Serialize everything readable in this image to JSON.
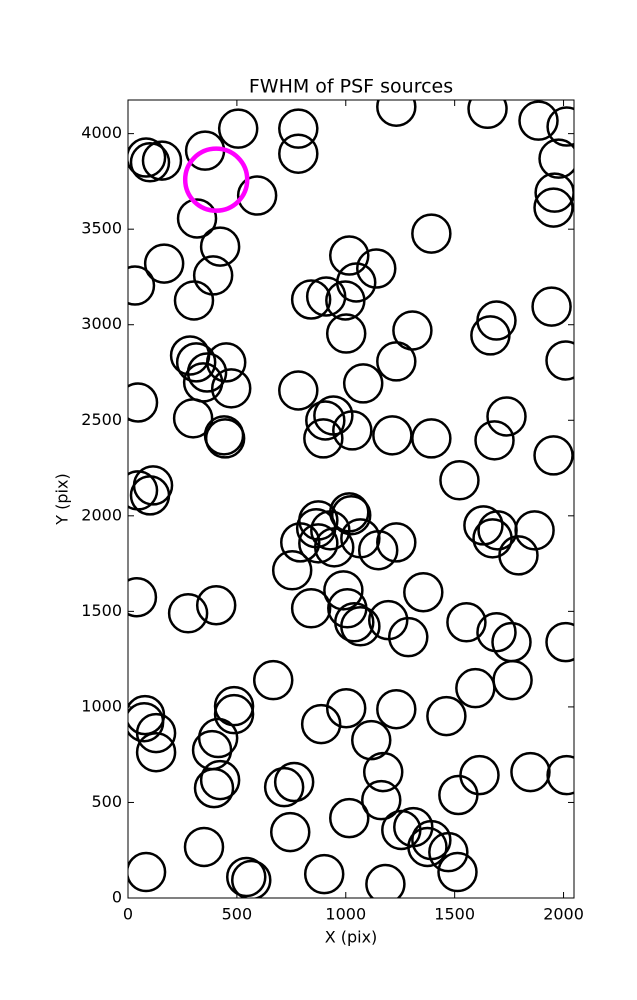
{
  "chart_data": {
    "type": "scatter",
    "title": "FWHM of PSF sources",
    "x_label": "X (pix)",
    "y_label": "Y (pix)",
    "xlim": [
      0,
      2048
    ],
    "ylim": [
      0,
      4176
    ],
    "xticks": [
      0,
      500,
      1000,
      1500,
      2000
    ],
    "yticks": [
      0,
      500,
      1000,
      1500,
      2000,
      2500,
      3000,
      3500,
      4000
    ],
    "series": [
      {
        "color": "#000000",
        "x": [
          83,
          101,
          156,
          354,
          506,
          593,
          317,
          782,
          782,
          1232,
          1651,
          1885,
          2014,
          1977,
          1959,
          1954,
          1393,
          32,
          166,
          423,
          391,
          303,
          1016,
          1140,
          1048,
          910,
          841,
          998,
          1002,
          1306,
          1692,
          1664,
          1945,
          2009,
          285,
          313,
          363,
          451,
          345,
          474,
          782,
          1080,
          1232,
          46,
          299,
          943,
          906,
          1030,
          897,
          441,
          446,
          1214,
          1393,
          1738,
          1683,
          1954,
          1522,
          115,
          101,
          46,
          874,
          864,
          1016,
          1025,
          929,
          791,
          874,
          947,
          1067,
          1149,
          1232,
          1632,
          1697,
          1674,
          1867,
          1793,
          754,
          41,
          276,
          405,
          841,
          989,
          1356,
          1007,
          1039,
          1067,
          1195,
          1287,
          1554,
          1692,
          1761,
          2009,
          667,
          1766,
          1595,
          78,
          74,
          129,
          129,
          487,
          487,
          1002,
          1232,
          1462,
          887,
          414,
          386,
          1117,
          1172,
          423,
          395,
          717,
          763,
          1614,
          1848,
          2014,
          1517,
          1163,
          1016,
          745,
          349,
          1255,
          1310,
          1375,
          1393,
          1471,
          1513,
          83,
          543,
          566,
          901,
          1182
        ],
        "y": [
          3875,
          3850,
          3859,
          3911,
          4026,
          3676,
          3556,
          4026,
          3895,
          4141,
          4130,
          4068,
          4037,
          3869,
          3691,
          3613,
          3477,
          3205,
          3320,
          3409,
          3258,
          3127,
          3362,
          3294,
          3221,
          3148,
          3132,
          3127,
          2954,
          2970,
          3022,
          2944,
          3095,
          2813,
          2839,
          2803,
          2750,
          2803,
          2698,
          2667,
          2656,
          2693,
          2808,
          2593,
          2510,
          2525,
          2499,
          2447,
          2405,
          2421,
          2405,
          2421,
          2405,
          2520,
          2395,
          2316,
          2186,
          2159,
          2107,
          2133,
          1976,
          1935,
          2018,
          2003,
          1924,
          1861,
          1856,
          1835,
          1882,
          1820,
          1861,
          1950,
          1924,
          1882,
          1924,
          1793,
          1715,
          1574,
          1490,
          1532,
          1516,
          1610,
          1600,
          1516,
          1443,
          1422,
          1454,
          1365,
          1443,
          1391,
          1339,
          1339,
          1140,
          1140,
          1098,
          957,
          920,
          863,
          763,
          1004,
          962,
          993,
          988,
          952,
          910,
          837,
          774,
          826,
          659,
          617,
          575,
          580,
          607,
          643,
          659,
          643,
          539,
          512,
          418,
          345,
          267,
          356,
          371,
          267,
          303,
          240,
          136,
          136,
          110,
          94,
          125,
          73
        ]
      },
      {
        "color": "#ff00ff",
        "x": [
          405
        ],
        "y": [
          3759
        ]
      }
    ]
  }
}
